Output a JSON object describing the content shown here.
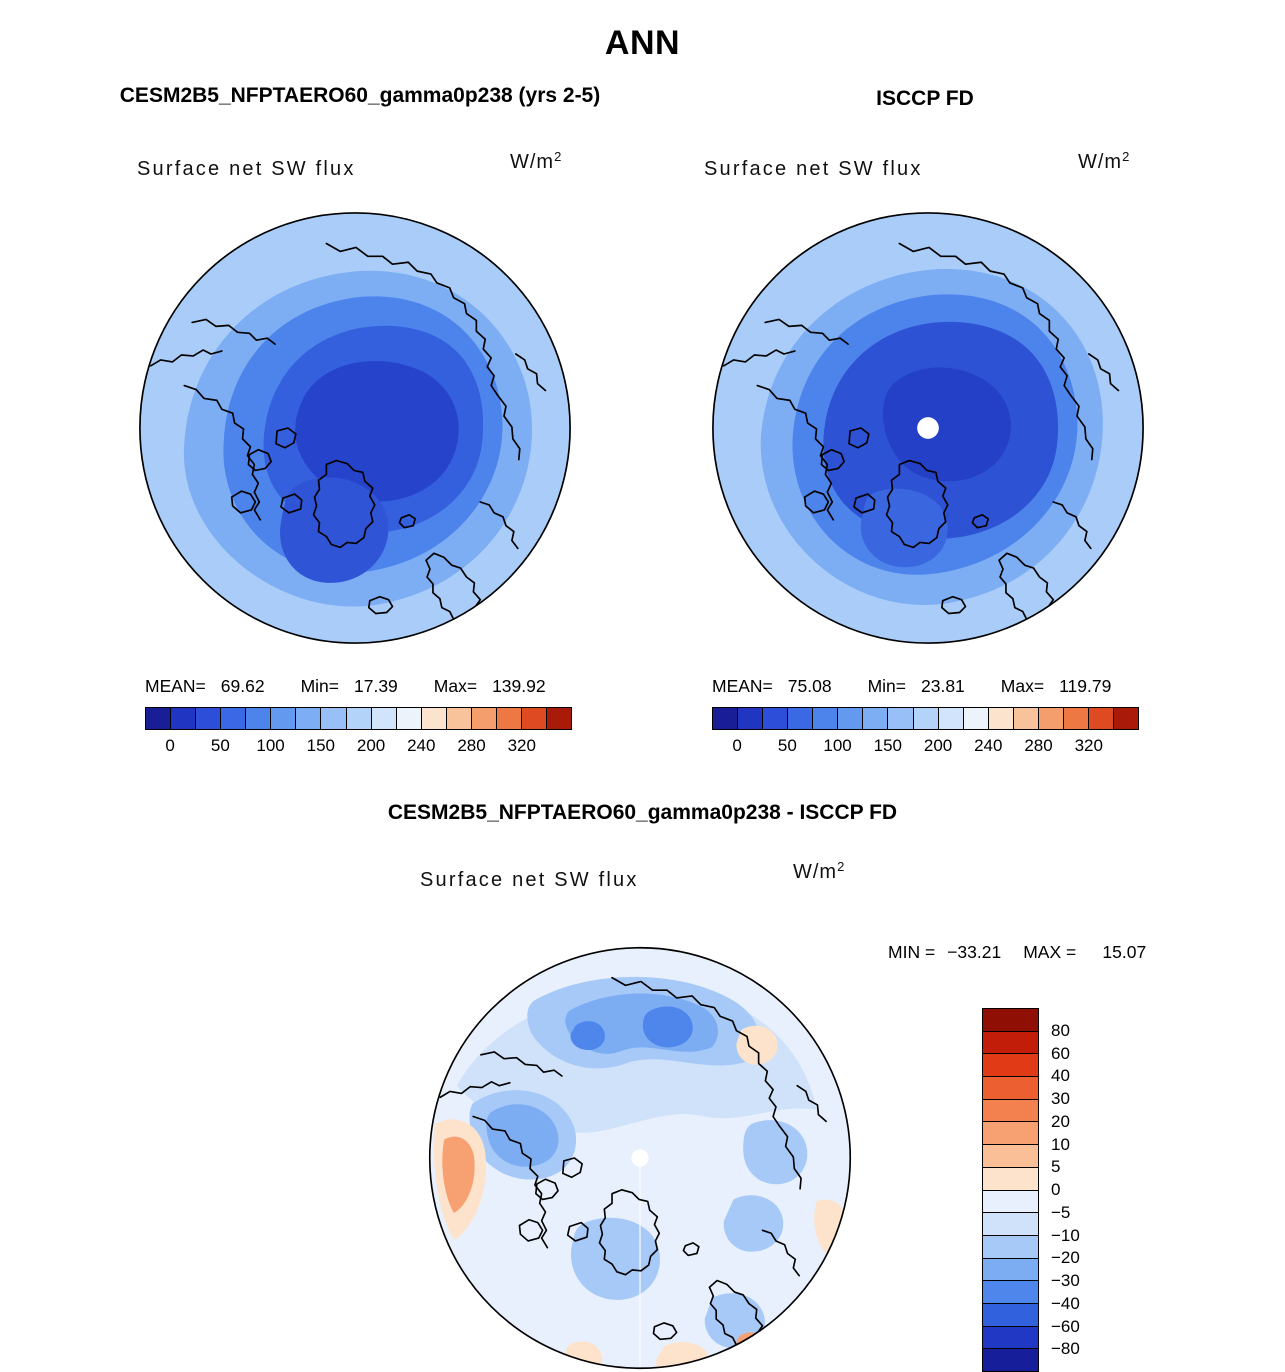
{
  "figure": {
    "title": "ANN"
  },
  "panels": {
    "model": {
      "title": "CESM2B5_NFPTAERO60_gamma0p238 (yrs 2-5)",
      "field_label": "Surface net SW flux",
      "units_base": "W/m",
      "units_exp": "2",
      "stats": {
        "mean_label": "MEAN=",
        "mean_value": "69.62",
        "min_label": "Min=",
        "min_value": "17.39",
        "max_label": "Max=",
        "max_value": "139.92"
      }
    },
    "obs": {
      "title": "ISCCP FD",
      "field_label": "Surface net SW flux",
      "units_base": "W/m",
      "units_exp": "2",
      "stats": {
        "mean_label": "MEAN=",
        "mean_value": "75.08",
        "min_label": "Min=",
        "min_value": "23.81",
        "max_label": "Max=",
        "max_value": "119.79"
      }
    },
    "diff": {
      "title": "CESM2B5_NFPTAERO60_gamma0p238 - ISCCP FD",
      "field_label": "Surface net SW flux",
      "units_base": "W/m",
      "units_exp": "2",
      "stats": {
        "min_label": "MIN =",
        "min_value": "−33.21",
        "max_label": "MAX =",
        "max_value": "15.07"
      }
    }
  },
  "colorbar_flux": {
    "ticks": [
      "0",
      "50",
      "100",
      "150",
      "200",
      "240",
      "280",
      "320"
    ],
    "colors": [
      "#1a1e96",
      "#2035c2",
      "#2c4ed8",
      "#3b69e5",
      "#4d84ec",
      "#639af0",
      "#7dadf3",
      "#98c0f6",
      "#b4d3f9",
      "#d2e4fb",
      "#edf3fb",
      "#fbe3cd",
      "#f8c29a",
      "#f49e6d",
      "#ee7843",
      "#de4a22",
      "#aa1a08"
    ]
  },
  "colorbar_diff": {
    "ticks": [
      "80",
      "60",
      "40",
      "30",
      "20",
      "10",
      "5",
      "0",
      "−5",
      "−10",
      "−20",
      "−30",
      "−40",
      "−60",
      "−80"
    ],
    "colors": [
      "#8f0f04",
      "#c11d08",
      "#e03a16",
      "#ec5f30",
      "#f3814f",
      "#f7a172",
      "#fabf97",
      "#fde3cb",
      "#e7f0fc",
      "#cfe2fa",
      "#a6c9f8",
      "#7cadf3",
      "#4f86ec",
      "#3261de",
      "#2138c4",
      "#161f99"
    ]
  },
  "chart_data": [
    {
      "type": "heatmap",
      "subtype": "polar_stereographic_contour_map",
      "season": "ANN",
      "title": "CESM2B5_NFPTAERO60_gamma0p238 (yrs 2-5)",
      "variable": "Surface net SW flux",
      "units": "W/m^2",
      "stats": {
        "mean": 69.62,
        "min": 17.39,
        "max": 139.92
      },
      "colorbar_ticks": [
        0,
        50,
        100,
        150,
        200,
        240,
        280,
        320
      ],
      "palette": "blue_to_red",
      "legend_position": "bottom"
    },
    {
      "type": "heatmap",
      "subtype": "polar_stereographic_contour_map",
      "season": "ANN",
      "title": "ISCCP FD",
      "variable": "Surface net SW flux",
      "units": "W/m^2",
      "stats": {
        "mean": 75.08,
        "min": 23.81,
        "max": 119.79
      },
      "colorbar_ticks": [
        0,
        50,
        100,
        150,
        200,
        240,
        280,
        320
      ],
      "palette": "blue_to_red",
      "legend_position": "bottom"
    },
    {
      "type": "heatmap",
      "subtype": "polar_stereographic_contour_map",
      "season": "ANN",
      "title": "CESM2B5_NFPTAERO60_gamma0p238 - ISCCP FD",
      "variable": "Surface net SW flux",
      "units": "W/m^2",
      "stats": {
        "min": -33.21,
        "max": 15.07
      },
      "colorbar_ticks": [
        80,
        60,
        40,
        30,
        20,
        10,
        5,
        0,
        -5,
        -10,
        -20,
        -30,
        -40,
        -60,
        -80
      ],
      "palette": "red_to_blue_diverging",
      "legend_position": "right"
    }
  ]
}
